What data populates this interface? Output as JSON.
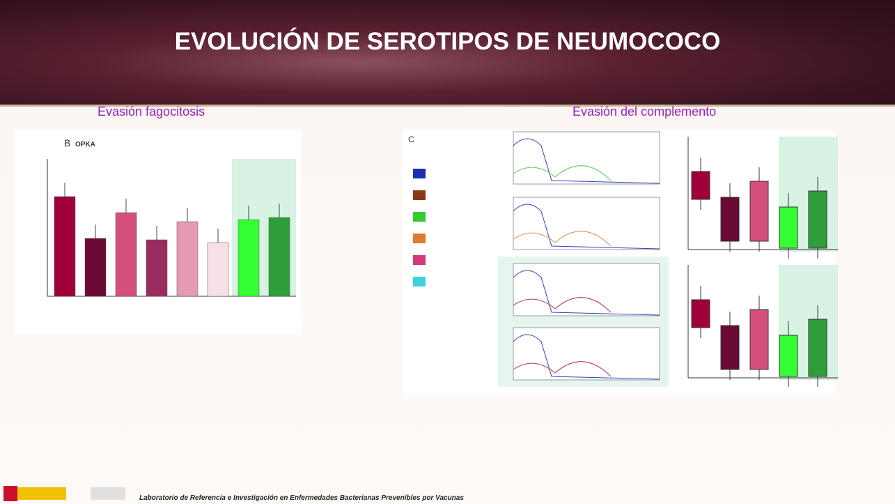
{
  "header": {
    "title": "EVOLUCIÓN DE SEROTIPOS DE NEUMOCOCO"
  },
  "left_panel": {
    "subtitle": "Evasión fagocitosis",
    "figure_letter": "B",
    "figure_title": "OPKA"
  },
  "right_panel": {
    "subtitle": "Evasión del complemento",
    "figure_letter": "C"
  },
  "footer": {
    "text": "Laboratorio de Referencia e Investigación en Enfermedades Bacterianas Prevenibles por Vacunas"
  }
}
